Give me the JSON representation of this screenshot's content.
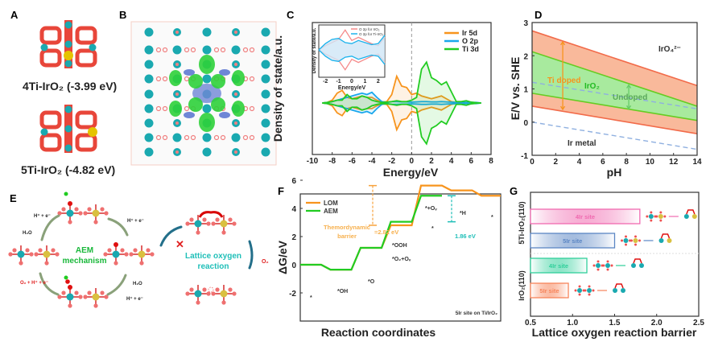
{
  "panels": {
    "A": {
      "label": "A",
      "captions": [
        "4Ti-IrO₂  (-3.99 eV)",
        "5Ti-IrO₂ (-4.82 eV)"
      ]
    },
    "B": {
      "label": "B"
    },
    "C": {
      "label": "C"
    },
    "D": {
      "label": "D"
    },
    "E": {
      "label": "E",
      "cycle_title": [
        "AEM",
        "mechanism"
      ],
      "lor_title": [
        "Lattice oxygen",
        "reaction"
      ],
      "h_e_top": "H⁺ + e⁻",
      "h2o_left": "H₂O",
      "h_e_right": "H⁺ + e⁻",
      "h2o_right": "H₂O",
      "h_e_bottom": "H⁺ + e⁻",
      "o2_left": "O₂ + H⁺ + e⁻",
      "o2_out": "O₂",
      "blocked_mark": "✕"
    },
    "F": {
      "label": "F"
    },
    "G": {
      "label": "G"
    }
  },
  "colors": {
    "orange": "#f7941d",
    "green": "#22cc22",
    "blue": "#1aa7ec",
    "teal": "#1fbfb8",
    "red": "#e8463a",
    "cyan": "#1aa9b0"
  },
  "chart_data": [
    {
      "panel": "C",
      "type": "area",
      "xlabel": "Energy/eV",
      "ylabel": "Density of state/a.u.",
      "xlim": [
        -10,
        8
      ],
      "xticks": [
        "-10",
        "-8",
        "-6",
        "-4",
        "-2",
        "0",
        "2",
        "4",
        "6",
        "8"
      ],
      "mirrored": true,
      "fermi_line": 0,
      "legend_position": "top-right",
      "x": [
        -9,
        -8.5,
        -8,
        -7.5,
        -7,
        -6.5,
        -6,
        -5.5,
        -5,
        -4.5,
        -4,
        -3.5,
        -3,
        -2.5,
        -2,
        -1.5,
        -1,
        -0.5,
        0,
        0.5,
        1,
        1.5,
        2,
        2.5,
        3,
        3.5,
        4,
        4.5,
        5,
        5.5,
        6,
        6.5,
        7
      ],
      "series": [
        {
          "name": "Ir 5d",
          "color": "#f7941d",
          "values": [
            0,
            0.02,
            0.1,
            0.35,
            0.45,
            0.2,
            0.15,
            0.2,
            0.25,
            0.2,
            0.2,
            0.1,
            0.03,
            0.05,
            0.3,
            0.95,
            0.6,
            0.55,
            0.3,
            0.35,
            0.25,
            0.2,
            0.15,
            0.2,
            0.25,
            0.15,
            0.05,
            0.02,
            0,
            0,
            0,
            0,
            0
          ]
        },
        {
          "name": "O 2p",
          "color": "#1aa7ec",
          "values": [
            0,
            0.02,
            0.05,
            0.1,
            0.15,
            0.2,
            0.25,
            0.3,
            0.35,
            0.3,
            0.38,
            0.2,
            0.05,
            0.02,
            0.05,
            0.05,
            0.04,
            0.04,
            0.03,
            0.04,
            0.05,
            0.05,
            0.04,
            0.04,
            0.05,
            0.04,
            0.03,
            0.02,
            0.03,
            0.02,
            0.02,
            0.02,
            0
          ]
        },
        {
          "name": "Ti 3d",
          "color": "#22cc22",
          "values": [
            0,
            0.02,
            0.05,
            0.1,
            0.1,
            0.3,
            0.15,
            0.15,
            0.25,
            0.2,
            0.1,
            0.05,
            0.02,
            0.03,
            0.05,
            0.08,
            0.05,
            0.05,
            0.1,
            0.2,
            1.2,
            1.45,
            0.9,
            0.8,
            0.65,
            0.75,
            0.4,
            0.05,
            0.05,
            0.08,
            0.03,
            0.01,
            0
          ]
        }
      ],
      "inset": {
        "xlabel": "Energy/eV",
        "ylabel": "Density of state/a.u.",
        "xlim": [
          -2.5,
          2.5
        ],
        "xticks": [
          "-2",
          "-1",
          "0",
          "1",
          "2"
        ],
        "x": [
          -2.5,
          -2,
          -1.5,
          -1,
          -0.5,
          0,
          0.5,
          1,
          1.5,
          2,
          2.5
        ],
        "series": [
          {
            "name": "O 2p for IrO₂",
            "color": "#f58a8a",
            "values": [
              0,
              0.2,
              0.35,
              0.5,
              0.95,
              0.45,
              0.6,
              0.45,
              0.3,
              0.2,
              0.6
            ]
          },
          {
            "name": "O 2p for Ti-IrO₂",
            "color": "#1ab2ec",
            "values": [
              0,
              0.3,
              0.5,
              0.55,
              0.35,
              0.3,
              0.45,
              0.35,
              0.25,
              0.3,
              0.7
            ]
          }
        ]
      }
    },
    {
      "panel": "D",
      "type": "area",
      "xlabel": "pH",
      "ylabel": "E/V vs. SHE",
      "xlim": [
        0,
        14
      ],
      "ylim": [
        -1,
        3
      ],
      "xticks": [
        "0",
        "2",
        "4",
        "6",
        "8",
        "10",
        "12",
        "14"
      ],
      "yticks": [
        "-1",
        "0",
        "1",
        "2",
        "3"
      ],
      "bands": [
        {
          "name": "Ti doped",
          "color": "#f7a27a",
          "upper": [
            2.75,
            1.1
          ],
          "lower": [
            0.48,
            -0.35
          ]
        },
        {
          "name": "Undoped",
          "color": "#9ef09e",
          "upper": [
            2.12,
            0.48
          ],
          "lower": [
            0.87,
            0.05
          ]
        }
      ],
      "dashed_lines": [
        [
          1.2,
          0.4
        ],
        [
          0.0,
          -0.82
        ]
      ],
      "band_arrows": [
        {
          "pH": 2.6,
          "from": 2.42,
          "to": 0.38,
          "color": "#f7941d"
        },
        {
          "pH": 8.2,
          "from": 1.12,
          "to": 0.4,
          "color": "#66cc66"
        }
      ],
      "annotations": {
        "iro4": "IrO₄²⁻",
        "ti_doped": "Ti doped",
        "iro2": "IrO₂",
        "undoped": "Undoped",
        "ir_metal": "Ir metal"
      }
    },
    {
      "panel": "F",
      "type": "line",
      "xlabel": "Reaction coordinates",
      "ylabel": "ΔG/eV",
      "ylim": [
        -2,
        7
      ],
      "yticks": [
        "-2",
        "0",
        "2",
        "4",
        "6"
      ],
      "legend_position": "top-left",
      "series": [
        {
          "name": "LOM",
          "color": "#f7941d",
          "values": [
            0,
            -0.35,
            1.2,
            2.8,
            5.62,
            5.28,
            4.9
          ]
        },
        {
          "name": "AEM",
          "color": "#22cc22",
          "values": [
            0,
            -0.35,
            1.2,
            3.05,
            4.9
          ]
        }
      ],
      "step_labels": [
        "*",
        "*OH",
        "*O",
        "*OOH",
        "*O₂+Oᵥ",
        "*+Oᵥ",
        "*",
        "*H",
        "*"
      ],
      "annotations": {
        "barrier_text": [
          "Themordynamic",
          "barrier"
        ],
        "lom_barrier": "=2.82 eV",
        "aem_barrier": "1.86 eV",
        "note": "5Ir site on Ti/IrO₂"
      }
    },
    {
      "panel": "G",
      "type": "bar",
      "orientation": "horizontal",
      "xlabel": "Lattice oxygen reaction barrier",
      "xlim": [
        0.5,
        2.5
      ],
      "xticks": [
        "0.5",
        "1.0",
        "1.5",
        "2.0",
        "2.5"
      ],
      "groups": [
        "5Ti-IrO₂(110)",
        "IrO₂(110)"
      ],
      "bars": [
        {
          "group": "5Ti-IrO₂(110)",
          "label": "4Ir site",
          "value": 1.8,
          "color": "#f06ab0"
        },
        {
          "group": "5Ti-IrO₂(110)",
          "label": "5Ir site",
          "value": 1.5,
          "color": "#5b86c4"
        },
        {
          "group": "IrO₂(110)",
          "label": "4Ir site",
          "value": 1.17,
          "color": "#2fcf9a"
        },
        {
          "group": "IrO₂(110)",
          "label": "5Ir site",
          "value": 0.95,
          "color": "#f7845a"
        }
      ]
    }
  ]
}
